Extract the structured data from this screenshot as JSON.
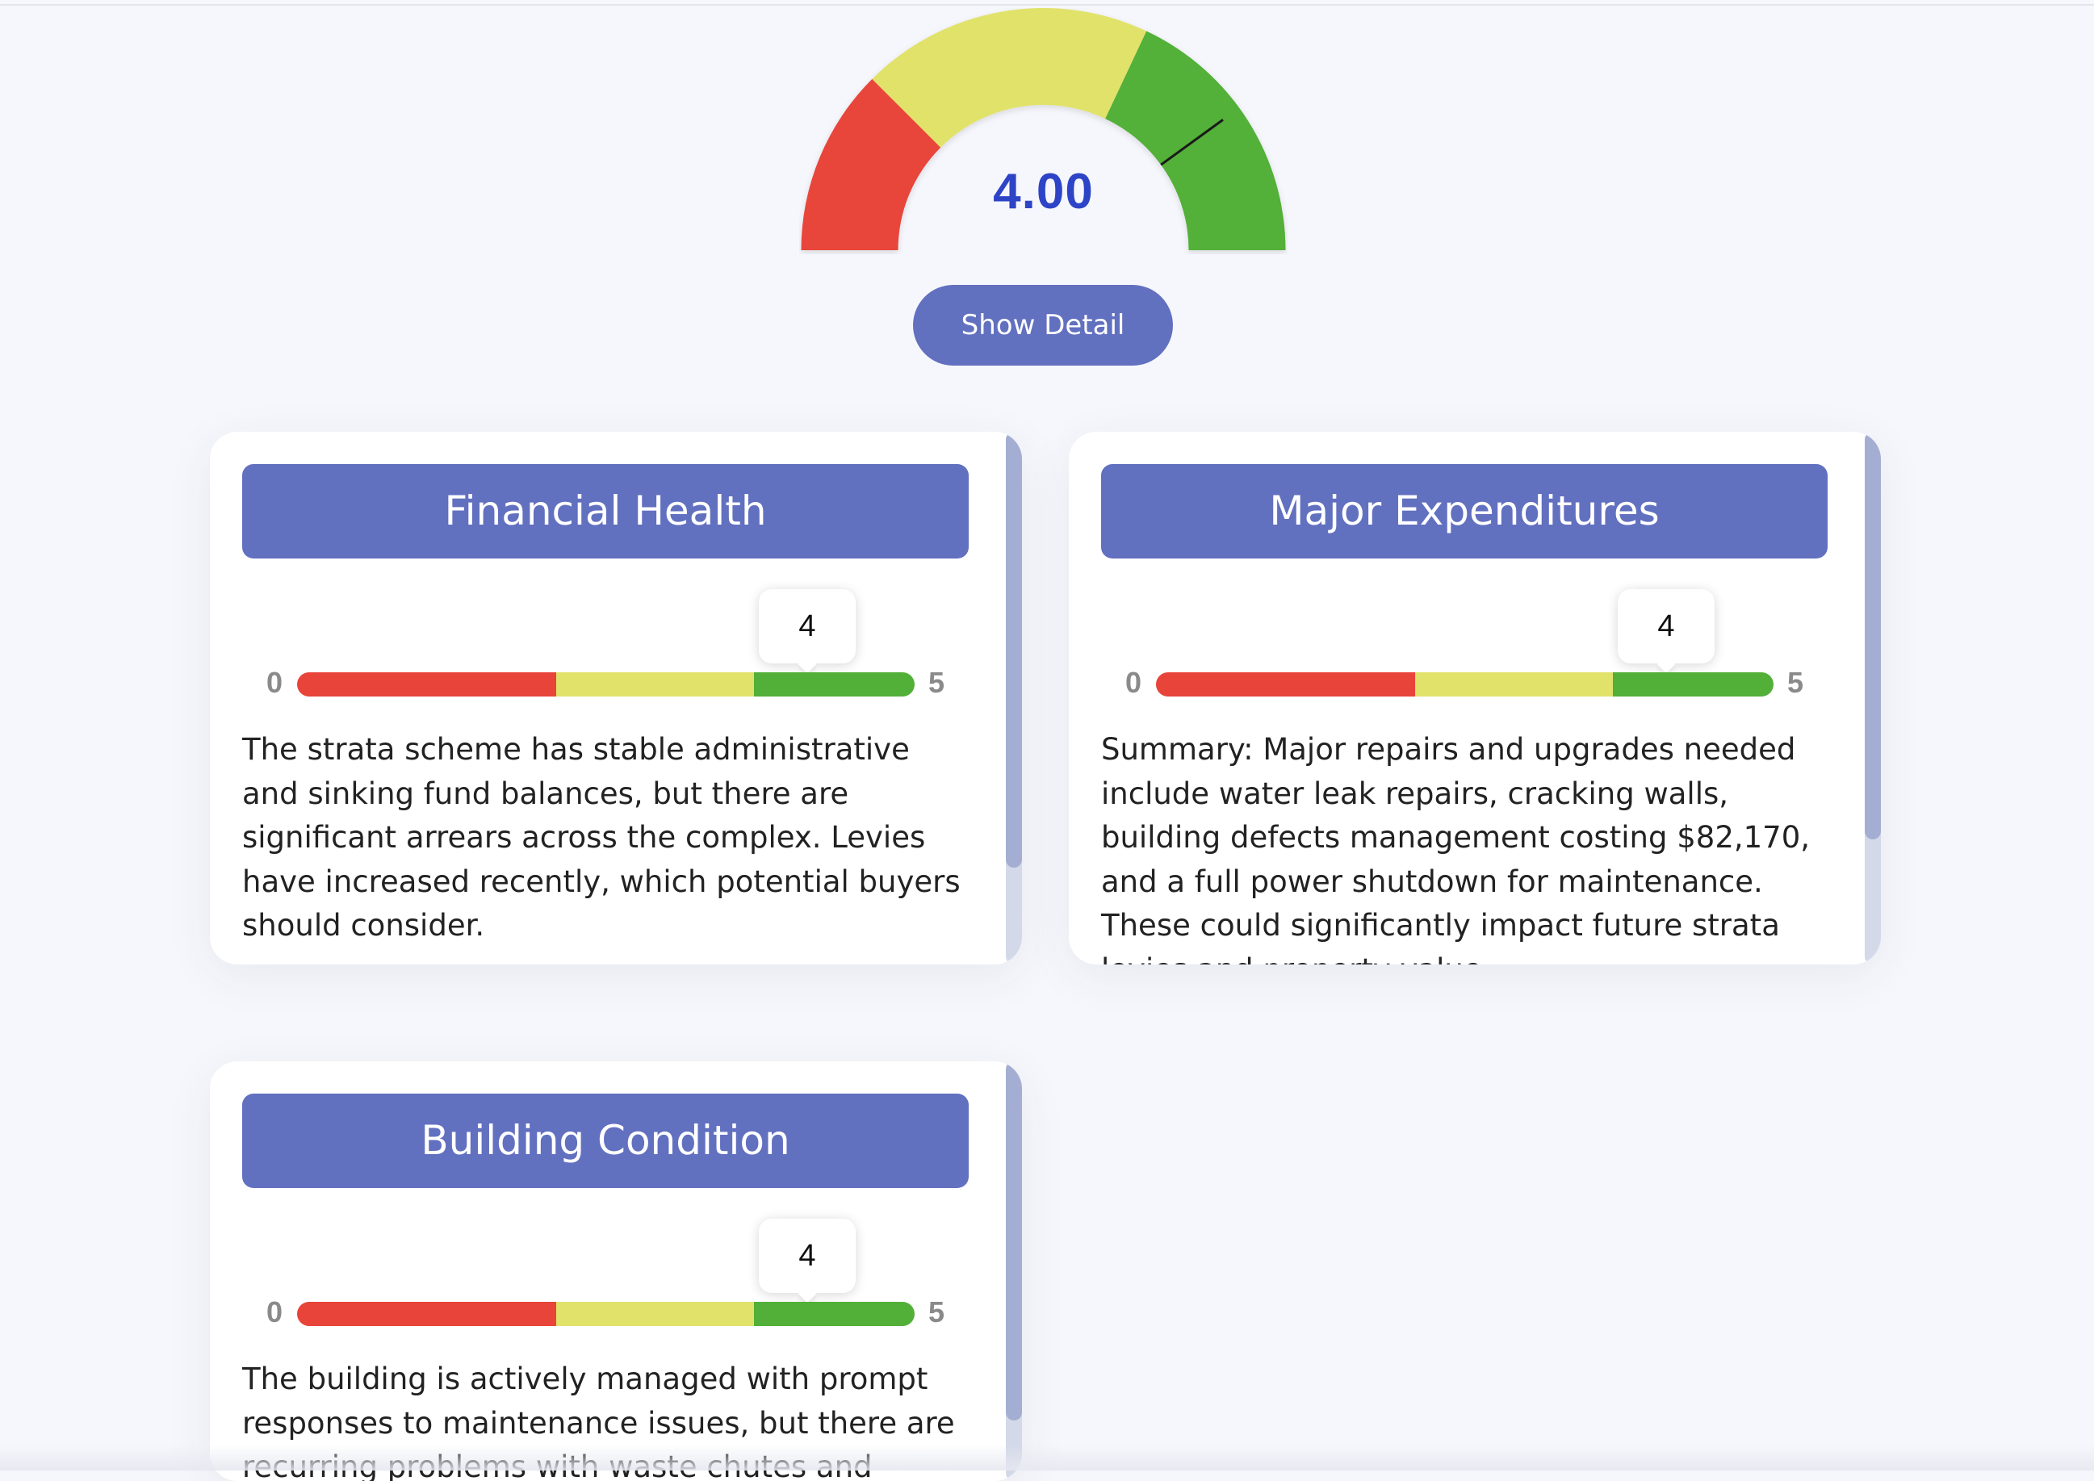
{
  "gauge": {
    "value": "4.00",
    "score": 4,
    "max": 5,
    "colors": {
      "red": "#e8443a",
      "yellow": "#e1e26a",
      "green": "#52b038",
      "value_text": "#2d44c7"
    }
  },
  "show_detail_label": "Show Detail",
  "accent_color": "#6270c0",
  "cards": [
    {
      "title": "Financial Health",
      "score": "4",
      "score_value": 4,
      "min": "0",
      "max": "5",
      "text": "The strata scheme has stable administrative and sinking fund balances, but there are significant arrears across the complex. Levies have increased recently, which potential buyers should consider."
    },
    {
      "title": "Major Expenditures",
      "score": "4",
      "score_value": 4,
      "min": "0",
      "max": "5",
      "text": "Summary: Major repairs and upgrades needed include water leak repairs, cracking walls, building defects management costing $82,170, and a full power shutdown for maintenance. These could significantly impact future strata levies and property value."
    },
    {
      "title": "Building Condition",
      "score": "4",
      "score_value": 4,
      "min": "0",
      "max": "5",
      "text": "The building is actively managed with prompt responses to maintenance issues, but there are recurring problems with waste chutes and"
    }
  ]
}
